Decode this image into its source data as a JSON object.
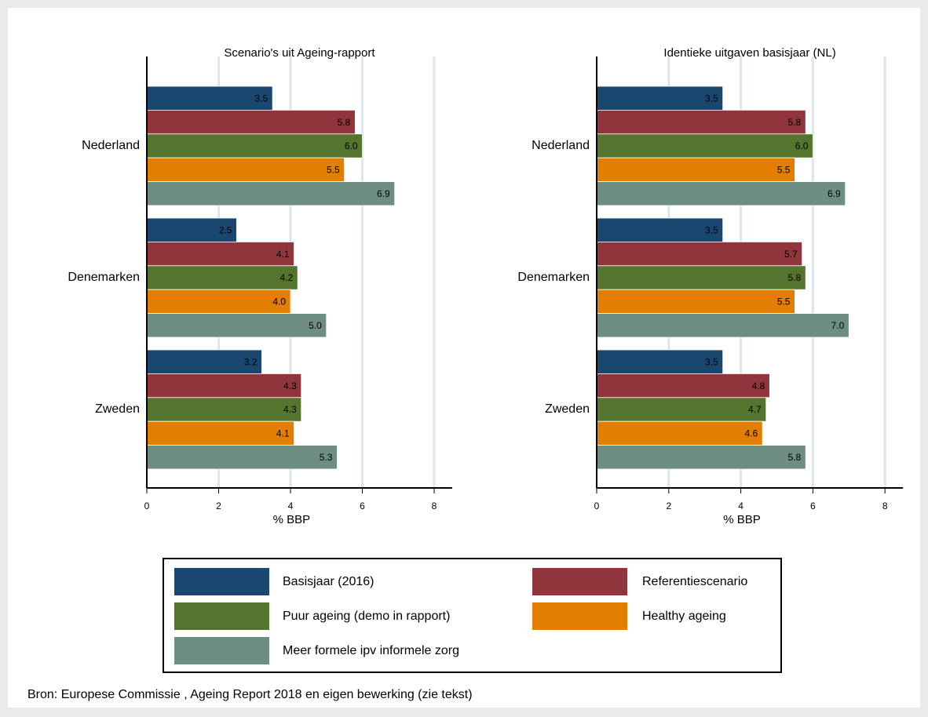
{
  "chart_data": [
    {
      "type": "bar",
      "orientation": "horizontal",
      "title": "Scenario's uit Ageing-rapport",
      "x_label": "% BBP",
      "categories": [
        "Nederland",
        "Denemarken",
        "Zweden"
      ],
      "series": [
        {
          "name": "Basisjaar (2016)",
          "color": "#1a476f",
          "values": [
            3.5,
            2.5,
            3.2
          ],
          "value_labels": [
            "3.5",
            "2.5",
            "3.2"
          ]
        },
        {
          "name": "Referentiescenario",
          "color": "#90353b",
          "values": [
            5.8,
            4.1,
            4.3
          ],
          "value_labels": [
            "5.8",
            "4.1",
            "4.3"
          ]
        },
        {
          "name": "Puur ageing (demo in rapport)",
          "color": "#55752f",
          "values": [
            6.0,
            4.2,
            4.3
          ],
          "value_labels": [
            "6.0",
            "4.2",
            "4.3"
          ]
        },
        {
          "name": "Healthy ageing",
          "color": "#e37e00",
          "values": [
            5.5,
            4.0,
            4.1
          ],
          "value_labels": [
            "5.5",
            "4.0",
            "4.1"
          ]
        },
        {
          "name": "Meer formele ipv informele zorg",
          "color": "#6e8e84",
          "values": [
            6.9,
            5.0,
            5.3
          ],
          "value_labels": [
            "6.9",
            "5.0",
            "5.3"
          ]
        }
      ],
      "xlim": [
        0,
        8.5
      ],
      "xticks": [
        0,
        2,
        4,
        6,
        8
      ],
      "grid": true
    },
    {
      "type": "bar",
      "orientation": "horizontal",
      "title": "Identieke uitgaven basisjaar (NL)",
      "x_label": "% BBP",
      "categories": [
        "Nederland",
        "Denemarken",
        "Zweden"
      ],
      "series": [
        {
          "name": "Basisjaar (2016)",
          "color": "#1a476f",
          "values": [
            3.5,
            3.5,
            3.5
          ],
          "value_labels": [
            "3.5",
            "3.5",
            "3.5"
          ]
        },
        {
          "name": "Referentiescenario",
          "color": "#90353b",
          "values": [
            5.8,
            5.7,
            4.8
          ],
          "value_labels": [
            "5.8",
            "5.7",
            "4.8"
          ]
        },
        {
          "name": "Puur ageing (demo in rapport)",
          "color": "#55752f",
          "values": [
            6.0,
            5.8,
            4.7
          ],
          "value_labels": [
            "6.0",
            "5.8",
            "4.7"
          ]
        },
        {
          "name": "Healthy ageing",
          "color": "#e37e00",
          "values": [
            5.5,
            5.5,
            4.6
          ],
          "value_labels": [
            "5.5",
            "5.5",
            "4.6"
          ]
        },
        {
          "name": "Meer formele ipv informele zorg",
          "color": "#6e8e84",
          "values": [
            6.9,
            7.0,
            5.8
          ],
          "value_labels": [
            "6.9",
            "7.0",
            "5.8"
          ]
        }
      ],
      "xlim": [
        0,
        8.5
      ],
      "xticks": [
        0,
        2,
        4,
        6,
        8
      ],
      "grid": true
    }
  ],
  "source": "Bron: Europese Commissie , Ageing Report  2018 en eigen bewerking  (zie tekst)"
}
